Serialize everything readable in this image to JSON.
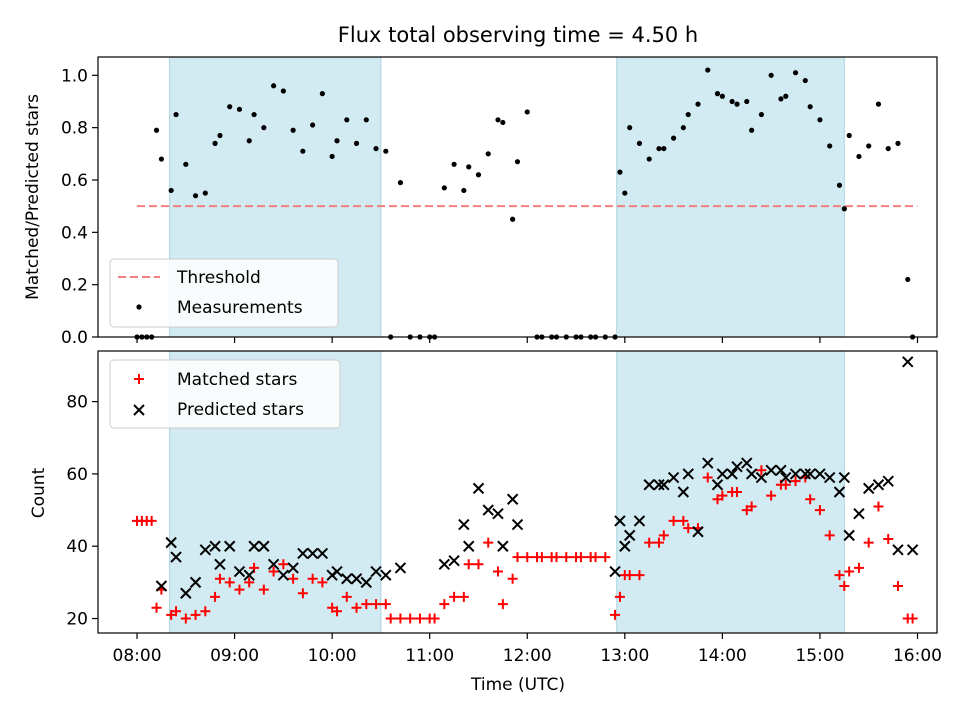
{
  "chart_data": [
    {
      "type": "scatter",
      "title": "Flux total observing time = 4.50 h",
      "ylabel": "Matched/Predicted stars",
      "xlabel": "",
      "ylim": [
        0,
        1.07
      ],
      "yticks": [
        0.0,
        0.2,
        0.4,
        0.6,
        0.8,
        1.0
      ],
      "ytick_labels": [
        "0.0",
        "0.2",
        "0.4",
        "0.6",
        "0.8",
        "1.0"
      ],
      "grid": false,
      "legend_position": "lower-left",
      "shaded_intervals": [
        [
          "08:20",
          "10:30"
        ],
        [
          "12:55",
          "15:15"
        ]
      ],
      "shade_color": "#add8e6",
      "threshold": {
        "name": "Threshold",
        "value": 0.5,
        "x_range": [
          "08:00",
          "16:00"
        ],
        "color": "#f08080",
        "style": "dashed"
      },
      "series": [
        {
          "name": "Measurements",
          "marker": "dot",
          "color": "#000000",
          "x": [
            "08:00",
            "08:03",
            "08:06",
            "08:09",
            "08:12",
            "08:15",
            "08:21",
            "08:24",
            "08:30",
            "08:36",
            "08:42",
            "08:48",
            "08:51",
            "08:57",
            "09:03",
            "09:09",
            "09:12",
            "09:18",
            "09:24",
            "09:30",
            "09:36",
            "09:42",
            "09:48",
            "09:54",
            "10:00",
            "10:03",
            "10:09",
            "10:15",
            "10:21",
            "10:27",
            "10:33",
            "10:36",
            "10:42",
            "10:48",
            "10:54",
            "11:00",
            "11:03",
            "11:09",
            "11:15",
            "11:21",
            "11:24",
            "11:30",
            "11:36",
            "11:42",
            "11:45",
            "11:51",
            "11:54",
            "12:00",
            "12:06",
            "12:09",
            "12:15",
            "12:18",
            "12:24",
            "12:30",
            "12:33",
            "12:39",
            "12:42",
            "12:48",
            "12:54",
            "12:57",
            "13:00",
            "13:03",
            "13:09",
            "13:15",
            "13:21",
            "13:24",
            "13:30",
            "13:36",
            "13:39",
            "13:45",
            "13:51",
            "13:57",
            "14:00",
            "14:06",
            "14:09",
            "14:15",
            "14:18",
            "14:24",
            "14:30",
            "14:36",
            "14:39",
            "14:45",
            "14:51",
            "14:54",
            "15:00",
            "15:06",
            "15:12",
            "15:15",
            "15:18",
            "15:24",
            "15:30",
            "15:36",
            "15:42",
            "15:48",
            "15:54",
            "15:57"
          ],
          "y": [
            0.0,
            0.0,
            0.0,
            0.0,
            0.79,
            0.68,
            0.56,
            0.85,
            0.66,
            0.54,
            0.55,
            0.74,
            0.77,
            0.88,
            0.87,
            0.75,
            0.85,
            0.8,
            0.96,
            0.94,
            0.79,
            0.71,
            0.81,
            0.93,
            0.69,
            0.75,
            0.83,
            0.74,
            0.83,
            0.72,
            0.71,
            0.0,
            0.59,
            0.0,
            0.0,
            0.0,
            0.0,
            0.57,
            0.66,
            0.56,
            0.65,
            0.62,
            0.7,
            0.83,
            0.82,
            0.45,
            0.67,
            0.86,
            0.0,
            0.0,
            0.0,
            0.0,
            0.0,
            0.0,
            0.0,
            0.0,
            0.0,
            0.0,
            0.0,
            0.63,
            0.55,
            0.8,
            0.74,
            0.68,
            0.72,
            0.72,
            0.76,
            0.8,
            0.85,
            0.89,
            1.02,
            0.93,
            0.92,
            0.9,
            0.89,
            0.9,
            0.79,
            0.85,
            1.0,
            0.91,
            0.92,
            1.01,
            0.98,
            0.88,
            0.83,
            0.73,
            0.58,
            0.49,
            0.77,
            0.69,
            0.73,
            0.89,
            0.72,
            0.74,
            0.22,
            0.0
          ]
        }
      ]
    },
    {
      "type": "scatter",
      "title": "",
      "xlabel": "Time (UTC)",
      "ylabel": "Count",
      "ylim": [
        16,
        94
      ],
      "yticks": [
        20,
        40,
        60,
        80
      ],
      "ytick_labels": [
        "20",
        "40",
        "60",
        "80"
      ],
      "xlim": [
        "07:36",
        "16:12"
      ],
      "xticks": [
        "08:00",
        "09:00",
        "10:00",
        "11:00",
        "12:00",
        "13:00",
        "14:00",
        "15:00",
        "16:00"
      ],
      "grid": false,
      "legend_position": "upper-left",
      "shaded_intervals": [
        [
          "08:20",
          "10:30"
        ],
        [
          "12:55",
          "15:15"
        ]
      ],
      "shade_color": "#add8e6",
      "series": [
        {
          "name": "Matched stars",
          "marker": "plus",
          "color": "#ff0000",
          "x": [
            "08:00",
            "08:03",
            "08:06",
            "08:09",
            "08:12",
            "08:15",
            "08:21",
            "08:24",
            "08:30",
            "08:36",
            "08:42",
            "08:48",
            "08:51",
            "08:57",
            "09:03",
            "09:09",
            "09:12",
            "09:18",
            "09:24",
            "09:30",
            "09:36",
            "09:42",
            "09:48",
            "09:54",
            "10:00",
            "10:03",
            "10:09",
            "10:15",
            "10:21",
            "10:27",
            "10:33",
            "10:36",
            "10:42",
            "10:48",
            "10:54",
            "11:00",
            "11:03",
            "11:09",
            "11:15",
            "11:21",
            "11:24",
            "11:30",
            "11:36",
            "11:42",
            "11:45",
            "11:51",
            "11:54",
            "12:00",
            "12:06",
            "12:09",
            "12:15",
            "12:18",
            "12:24",
            "12:30",
            "12:33",
            "12:39",
            "12:42",
            "12:48",
            "12:54",
            "12:57",
            "13:00",
            "13:03",
            "13:09",
            "13:15",
            "13:21",
            "13:24",
            "13:30",
            "13:36",
            "13:39",
            "13:45",
            "13:51",
            "13:57",
            "14:00",
            "14:06",
            "14:09",
            "14:15",
            "14:18",
            "14:24",
            "14:30",
            "14:36",
            "14:39",
            "14:45",
            "14:51",
            "14:54",
            "15:00",
            "15:06",
            "15:12",
            "15:15",
            "15:18",
            "15:24",
            "15:30",
            "15:36",
            "15:42",
            "15:48",
            "15:54",
            "15:57"
          ],
          "y": [
            47,
            47,
            47,
            47,
            23,
            28,
            21,
            22,
            20,
            21,
            22,
            26,
            31,
            30,
            28,
            30,
            34,
            28,
            33,
            35,
            31,
            27,
            31,
            30,
            23,
            22,
            26,
            23,
            24,
            24,
            24,
            20,
            20,
            20,
            20,
            20,
            20,
            24,
            26,
            26,
            35,
            35,
            41,
            33,
            24,
            31,
            37,
            37,
            37,
            37,
            37,
            37,
            37,
            37,
            37,
            37,
            37,
            37,
            21,
            26,
            32,
            32,
            32,
            41,
            41,
            43,
            47,
            47,
            45,
            45,
            59,
            53,
            54,
            55,
            55,
            50,
            51,
            61,
            54,
            57,
            57,
            58,
            59,
            53,
            50,
            43,
            32,
            29,
            33,
            34,
            41,
            51,
            42,
            29,
            20,
            20
          ]
        },
        {
          "name": "Predicted stars",
          "marker": "x",
          "color": "#000000",
          "x": [
            "08:15",
            "08:21",
            "08:24",
            "08:30",
            "08:36",
            "08:42",
            "08:48",
            "08:51",
            "08:57",
            "09:03",
            "09:09",
            "09:12",
            "09:18",
            "09:24",
            "09:30",
            "09:36",
            "09:42",
            "09:48",
            "09:54",
            "10:00",
            "10:03",
            "10:09",
            "10:15",
            "10:21",
            "10:27",
            "10:33",
            "10:42",
            "11:09",
            "11:15",
            "11:21",
            "11:24",
            "11:30",
            "11:36",
            "11:42",
            "11:45",
            "11:51",
            "11:54",
            "12:54",
            "12:57",
            "13:00",
            "13:03",
            "13:09",
            "13:15",
            "13:21",
            "13:24",
            "13:30",
            "13:36",
            "13:39",
            "13:45",
            "13:51",
            "13:57",
            "14:00",
            "14:06",
            "14:09",
            "14:15",
            "14:18",
            "14:24",
            "14:30",
            "14:36",
            "14:39",
            "14:45",
            "14:51",
            "14:54",
            "15:00",
            "15:06",
            "15:12",
            "15:15",
            "15:18",
            "15:24",
            "15:30",
            "15:36",
            "15:42",
            "15:48",
            "15:54",
            "15:57"
          ],
          "y": [
            29,
            41,
            37,
            27,
            30,
            39,
            40,
            35,
            40,
            33,
            32,
            40,
            40,
            35,
            32,
            34,
            38,
            38,
            38,
            32,
            33,
            31,
            31,
            30,
            33,
            32,
            34,
            35,
            36,
            46,
            40,
            56,
            50,
            49,
            40,
            53,
            46,
            33,
            47,
            40,
            43,
            47,
            57,
            57,
            57,
            59,
            55,
            60,
            44,
            63,
            57,
            60,
            60,
            62,
            63,
            60,
            59,
            61,
            61,
            59,
            60,
            60,
            60,
            60,
            59,
            55,
            59,
            43,
            49,
            56,
            57,
            58,
            39,
            91,
            39
          ]
        }
      ]
    }
  ]
}
